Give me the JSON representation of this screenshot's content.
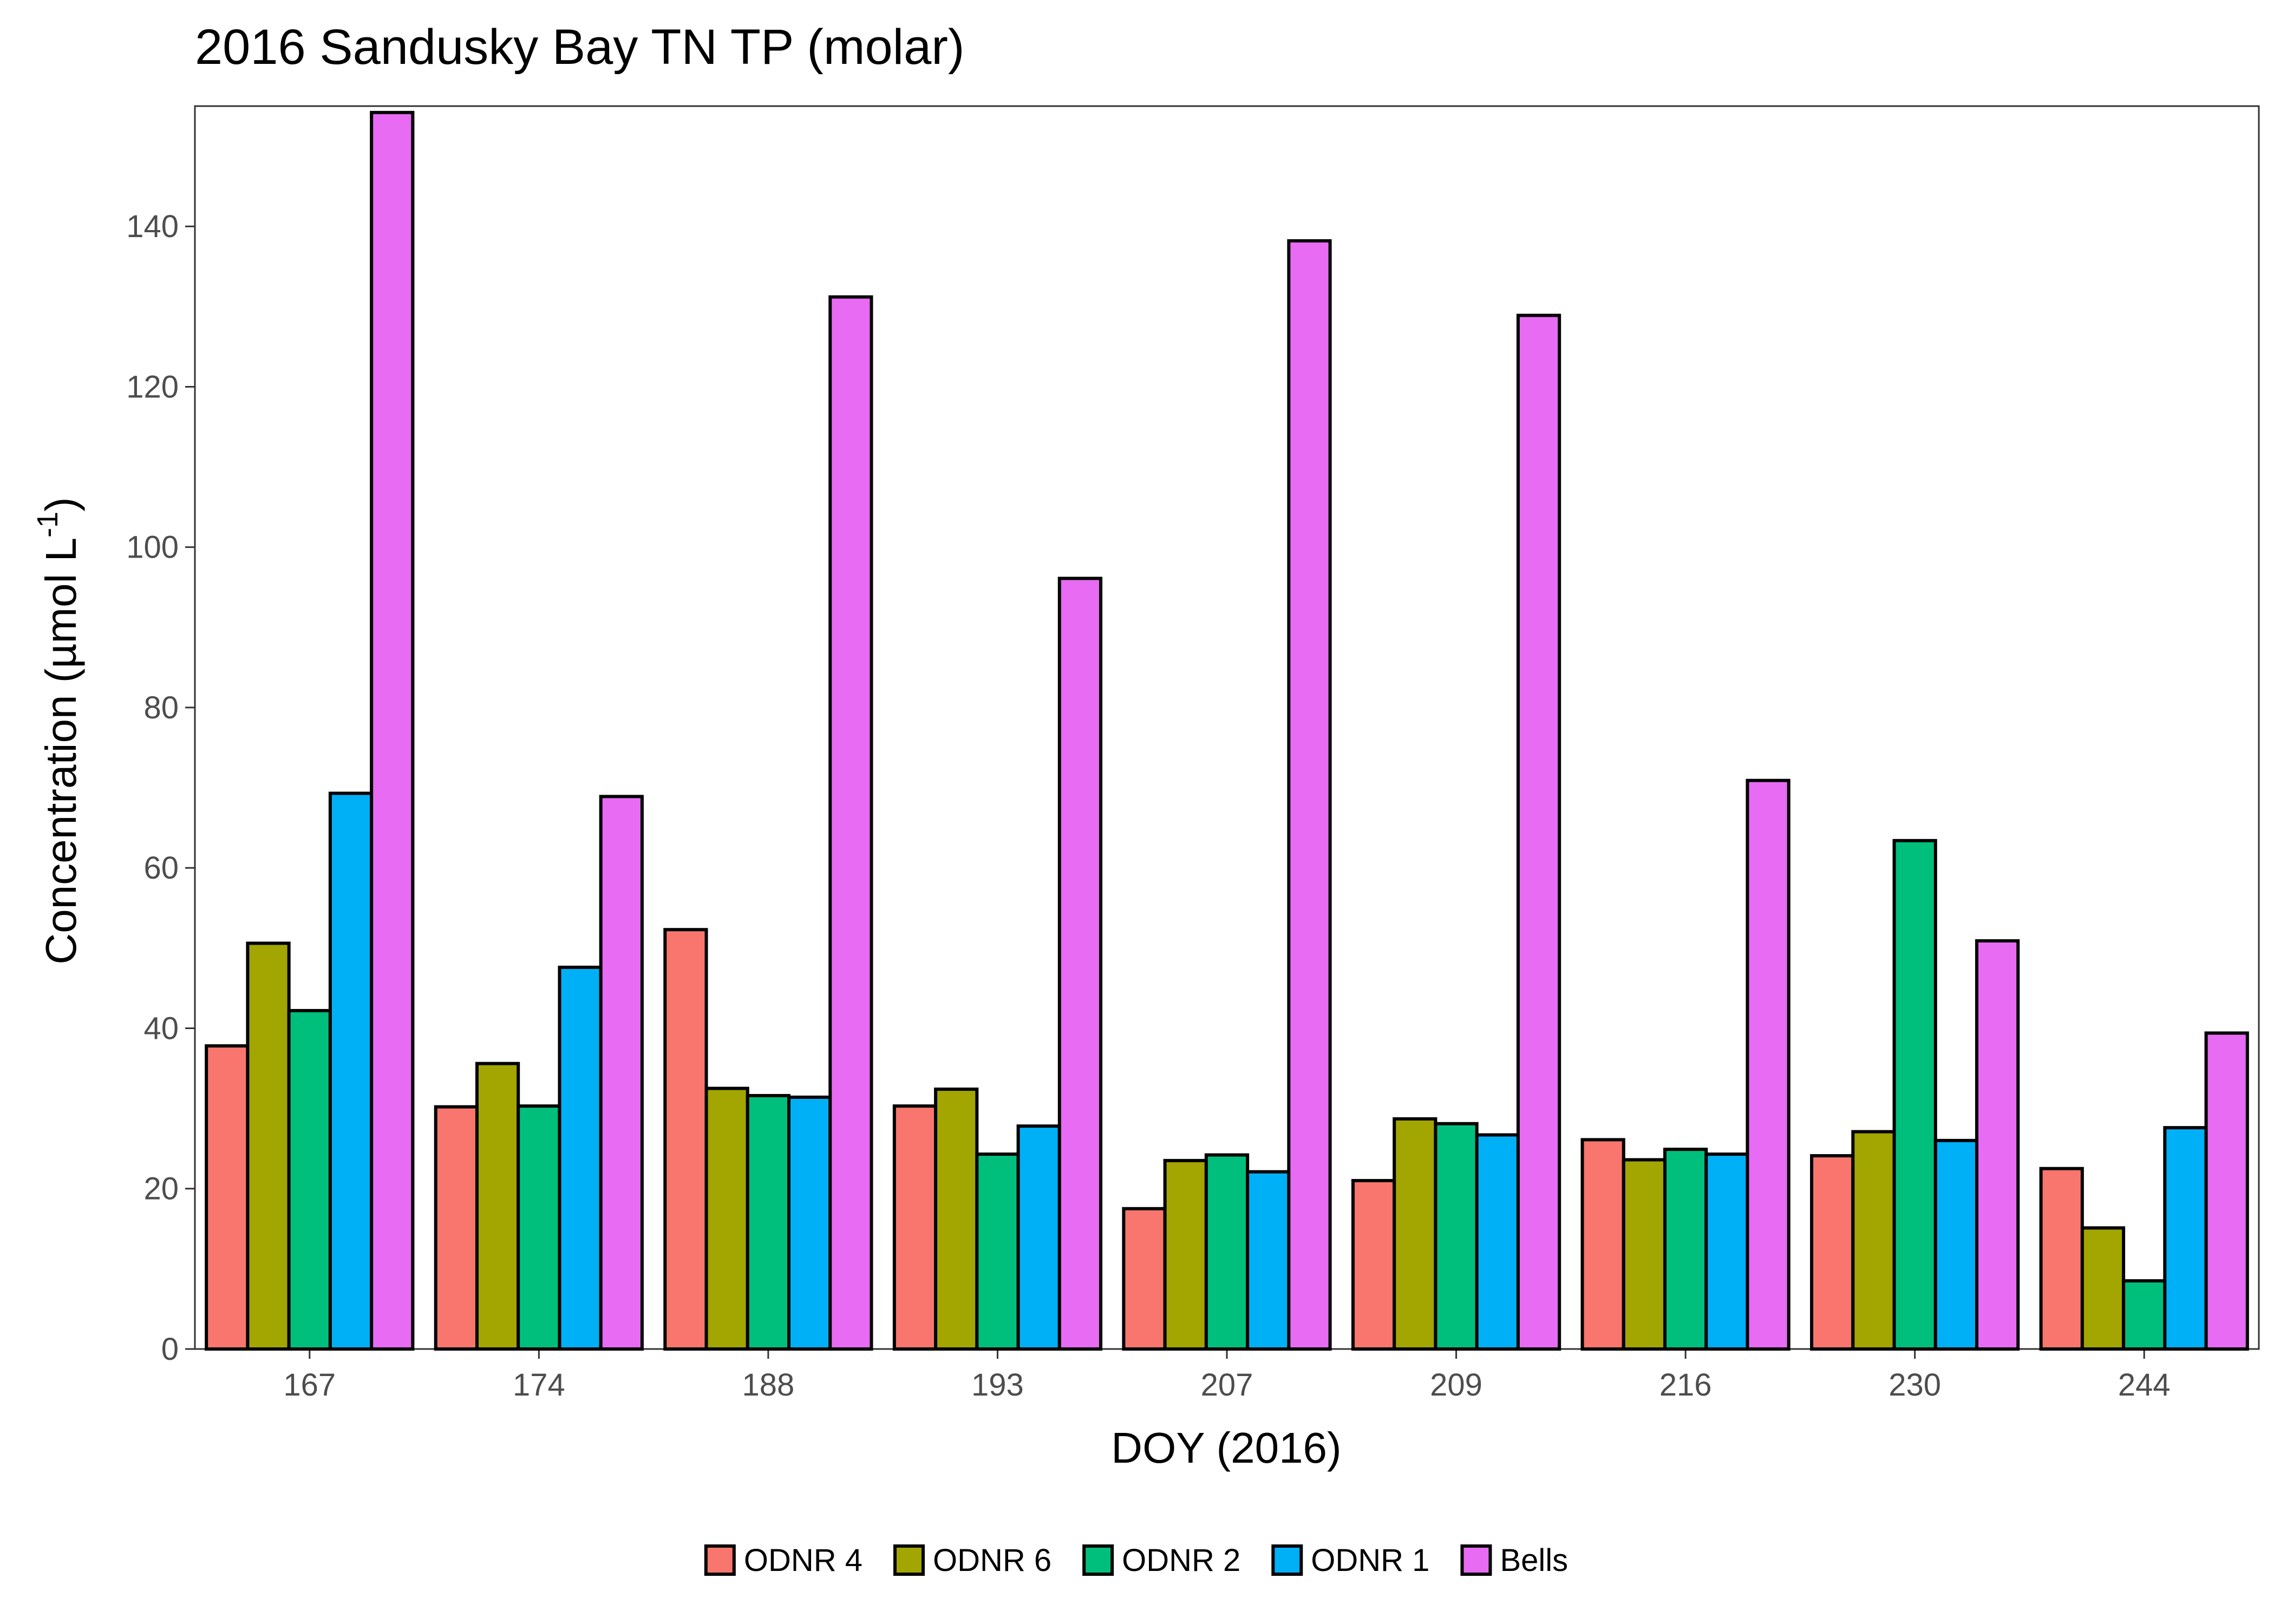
{
  "chart_data": {
    "type": "bar",
    "title": "2016 Sandusky Bay TN TP (molar)",
    "xlabel": "DOY (2016)",
    "ylabel": {
      "text": "Concentration (µmol L",
      "superscript": "-1",
      "suffix": ")"
    },
    "ylim": [
      0,
      155
    ],
    "yticks": [
      0,
      20,
      40,
      60,
      80,
      100,
      120,
      140
    ],
    "grid": false,
    "legend_position": "bottom",
    "categories": [
      "167",
      "174",
      "188",
      "193",
      "207",
      "209",
      "216",
      "230",
      "244"
    ],
    "series": [
      {
        "name": "ODNR 4",
        "color": "#F8766D",
        "values": [
          37.8,
          30.2,
          52.3,
          30.3,
          17.5,
          21.0,
          26.1,
          24.1,
          22.5
        ]
      },
      {
        "name": "ODNR 6",
        "color": "#A3A500",
        "values": [
          50.6,
          35.6,
          32.5,
          32.4,
          23.5,
          28.7,
          23.6,
          27.1,
          15.1
        ]
      },
      {
        "name": "ODNR 2",
        "color": "#00BF7D",
        "values": [
          42.2,
          30.3,
          31.6,
          24.3,
          24.2,
          28.1,
          24.9,
          63.4,
          8.5
        ]
      },
      {
        "name": "ODNR 1",
        "color": "#00B0F6",
        "values": [
          69.3,
          47.6,
          31.4,
          27.8,
          22.1,
          26.7,
          24.3,
          26.0,
          27.6
        ]
      },
      {
        "name": "Bells",
        "color": "#E76BF3",
        "values": [
          154.2,
          68.9,
          131.2,
          96.1,
          138.2,
          128.9,
          70.9,
          50.9,
          39.4
        ]
      }
    ]
  }
}
